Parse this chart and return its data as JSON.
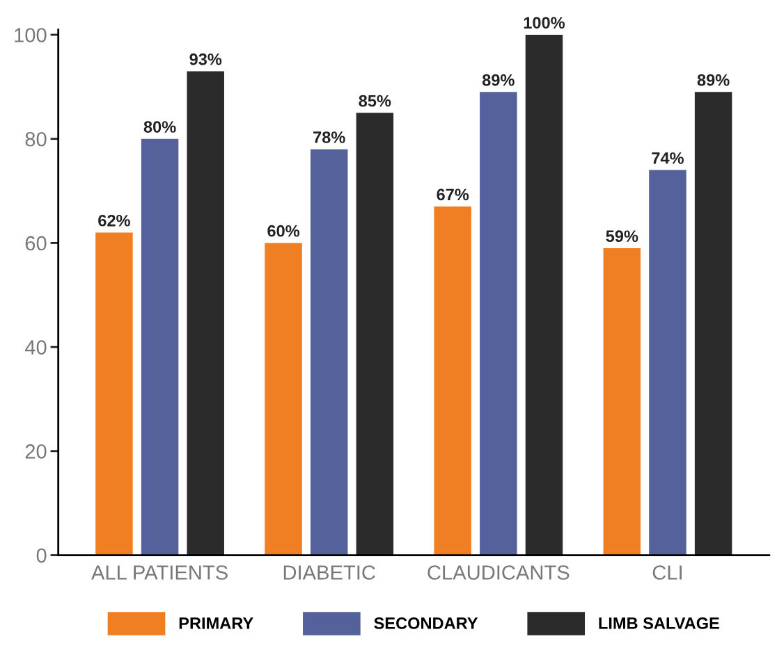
{
  "chart_data": {
    "type": "bar",
    "categories": [
      "ALL PATIENTS",
      "DIABETIC",
      "CLAUDICANTS",
      "CLI"
    ],
    "series": [
      {
        "name": "PRIMARY",
        "color": "#f07f24",
        "values": [
          62,
          60,
          67,
          59
        ],
        "value_labels": [
          "62%",
          "60%",
          "67%",
          "59%"
        ]
      },
      {
        "name": "SECONDARY",
        "color": "#55619a",
        "values": [
          80,
          78,
          89,
          74
        ],
        "value_labels": [
          "80%",
          "78%",
          "89%",
          "74%"
        ]
      },
      {
        "name": "LIMB SALVAGE",
        "color": "#2b2b2b",
        "values": [
          93,
          85,
          100,
          89
        ],
        "value_labels": [
          "93%",
          "85%",
          "100%",
          "89%"
        ]
      }
    ],
    "ylim": [
      0,
      101
    ],
    "yticks": [
      0,
      20,
      40,
      60,
      80,
      100
    ],
    "grid": false,
    "legend": "bottom"
  }
}
